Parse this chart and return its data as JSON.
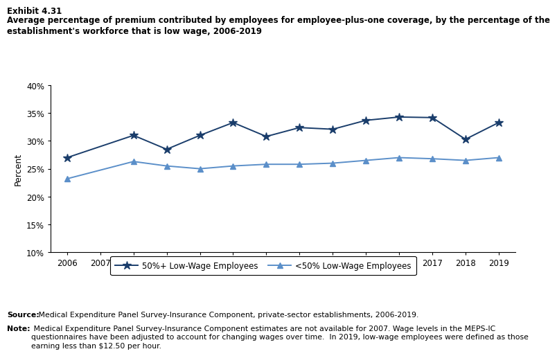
{
  "title_exhibit": "Exhibit 4.31",
  "title_main": "Average percentage of premium contributed by employees for employee-plus-one coverage, by the percentage of the\nestablishment's workforce that is low wage, 2006-2019",
  "ylabel": "Percent",
  "years_50plus": [
    2006,
    2008,
    2009,
    2010,
    2011,
    2012,
    2013,
    2014,
    2015,
    2016,
    2017,
    2018,
    2019
  ],
  "values_50plus": [
    27.0,
    31.0,
    28.5,
    31.0,
    33.3,
    30.8,
    32.4,
    32.1,
    33.7,
    34.3,
    34.2,
    30.3,
    33.3
  ],
  "years_less50": [
    2006,
    2008,
    2009,
    2010,
    2011,
    2012,
    2013,
    2014,
    2015,
    2016,
    2017,
    2018,
    2019
  ],
  "values_less50": [
    23.2,
    26.3,
    25.5,
    25.0,
    25.5,
    25.8,
    25.8,
    26.0,
    26.5,
    27.0,
    26.8,
    26.5,
    27.0
  ],
  "color_50plus": "#1a3d6b",
  "color_less50": "#5b8fc9",
  "ylim_min": 10,
  "ylim_max": 40,
  "yticks": [
    10,
    15,
    20,
    25,
    30,
    35,
    40
  ],
  "xticks": [
    2006,
    2007,
    2008,
    2009,
    2010,
    2011,
    2012,
    2013,
    2014,
    2015,
    2016,
    2017,
    2018,
    2019
  ],
  "legend_50plus": "50%+ Low-Wage Employees",
  "legend_less50": "<50% Low-Wage Employees",
  "source_bold": "Source:",
  "source_rest": " Medical Expenditure Panel Survey-Insurance Component, private-sector establishments, 2006-2019.",
  "note_bold": "Note:",
  "note_rest": " Medical Expenditure Panel Survey-Insurance Component estimates are not available for 2007. Wage levels in the MEPS-IC\nquestionnaires have been adjusted to account for changing wages over time.  In 2019, low-wage employees were defined as those\nearning less than $12.50 per hour."
}
